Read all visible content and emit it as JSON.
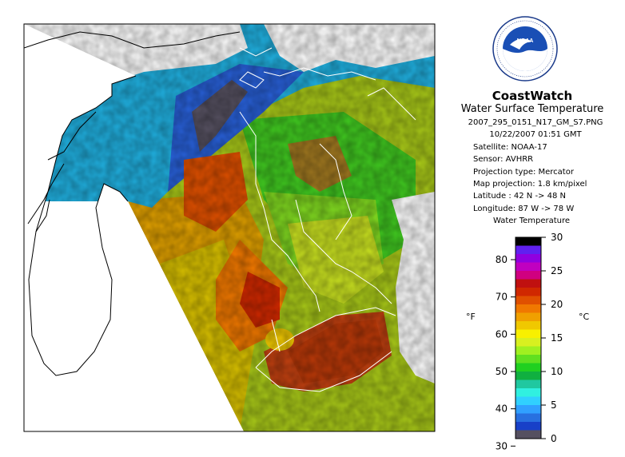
{
  "map": {
    "region_outline": "Lake Michigan / Lake Huron / Lake Erie shoreline",
    "colors": {
      "cloud": "#ffffff",
      "nodata": "#ffffff",
      "coast": "#000000",
      "border": "#ffffff"
    }
  },
  "header": {
    "brand": "CoastWatch",
    "product": "Water Surface Temperature",
    "filename": "2007_295_0151_N17_GM_S7.PNG"
  },
  "metadata": {
    "datetime": "10/22/2007   01:51 GMT",
    "satellite": "Satellite: NOAA-17",
    "sensor": "Sensor: AVHRR",
    "projection_type": "Projection type:  Mercator",
    "map_projection": "Map projection: 1.8 km/pixel",
    "latitude": "Latitude : 42 N -> 48 N",
    "longitude": "Longitude: 87 W -> 78 W"
  },
  "legend": {
    "title": "Water Temperature",
    "unit_f": "°F",
    "unit_c": "°C",
    "f_ticks": [
      "30",
      "40",
      "50",
      "60",
      "70",
      "80"
    ],
    "c_ticks": [
      "0",
      "5",
      "10",
      "15",
      "20",
      "25",
      "30"
    ],
    "colors": [
      "#555060",
      "#1840c8",
      "#2870e0",
      "#30a0ff",
      "#30d0ff",
      "#30f0e0",
      "#20c8a0",
      "#10b040",
      "#20d020",
      "#60e020",
      "#a0f020",
      "#d8f020",
      "#f8f000",
      "#f0c800",
      "#f0a000",
      "#f07800",
      "#e05000",
      "#d02800",
      "#c01010",
      "#d00080",
      "#c000c0",
      "#9000e0",
      "#6020f0",
      "#000000"
    ],
    "c_min": 0,
    "c_max": 30
  },
  "logo": {
    "text": "NOAA",
    "ring_text": "NATIONAL OCEANIC AND ATMOSPHERIC ADMINISTRATION · U.S. DEPARTMENT OF COMMERCE"
  }
}
